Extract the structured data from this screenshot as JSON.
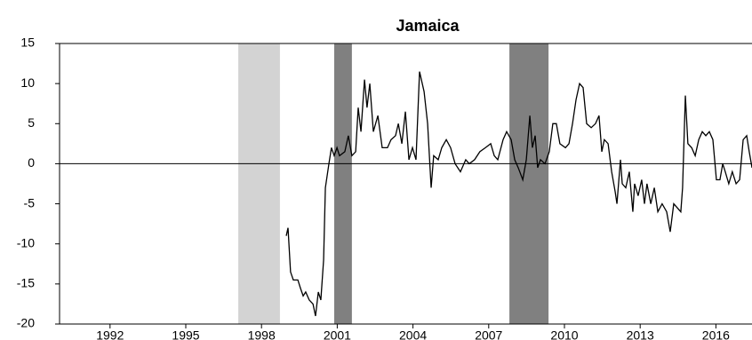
{
  "chart_data": {
    "type": "line",
    "title": "Jamaica",
    "xlim": [
      1990,
      2017.43
    ],
    "xticks": [
      1992,
      1995,
      1998,
      2001,
      2004,
      2007,
      2010,
      2013,
      2016
    ],
    "ylim": [
      -20,
      15
    ],
    "yticks": [
      -20,
      -15,
      -10,
      -5,
      0,
      5,
      10,
      15
    ],
    "color": "#000000",
    "shaded": [
      {
        "start": 1997.08,
        "end": 1998.73,
        "color": "#d3d3d3"
      },
      {
        "start": 2000.88,
        "end": 2001.58,
        "color": "#808080"
      },
      {
        "start": 2007.82,
        "end": 2009.37,
        "color": "#808080"
      }
    ],
    "x": [
      1998.98,
      1999.05,
      1999.15,
      1999.26,
      1999.44,
      1999.54,
      1999.65,
      1999.75,
      1999.89,
      2000.04,
      2000.14,
      2000.25,
      2000.35,
      2000.46,
      2000.53,
      2000.67,
      2000.77,
      2000.88,
      2000.99,
      2001.09,
      2001.3,
      2001.44,
      2001.58,
      2001.73,
      2001.83,
      2001.94,
      2002.08,
      2002.18,
      2002.29,
      2002.43,
      2002.61,
      2002.78,
      2002.99,
      2003.13,
      2003.31,
      2003.42,
      2003.56,
      2003.7,
      2003.84,
      2003.98,
      2004.12,
      2004.26,
      2004.44,
      2004.58,
      2004.72,
      2004.82,
      2005.0,
      2005.14,
      2005.32,
      2005.49,
      2005.67,
      2005.88,
      2006.09,
      2006.23,
      2006.44,
      2006.65,
      2006.87,
      2007.08,
      2007.22,
      2007.36,
      2007.57,
      2007.71,
      2007.89,
      2008.03,
      2008.17,
      2008.35,
      2008.49,
      2008.63,
      2008.73,
      2008.84,
      2008.94,
      2009.05,
      2009.23,
      2009.4,
      2009.54,
      2009.68,
      2009.82,
      2010.04,
      2010.18,
      2010.32,
      2010.46,
      2010.6,
      2010.74,
      2010.88,
      2011.06,
      2011.23,
      2011.37,
      2011.48,
      2011.58,
      2011.73,
      2011.87,
      2012.01,
      2012.08,
      2012.22,
      2012.29,
      2012.43,
      2012.57,
      2012.71,
      2012.78,
      2012.92,
      2013.06,
      2013.17,
      2013.27,
      2013.42,
      2013.56,
      2013.7,
      2013.87,
      2014.05,
      2014.19,
      2014.33,
      2014.47,
      2014.61,
      2014.68,
      2014.79,
      2014.89,
      2015.04,
      2015.18,
      2015.32,
      2015.46,
      2015.6,
      2015.74,
      2015.88,
      2016.02,
      2016.16,
      2016.27,
      2016.37,
      2016.51,
      2016.65,
      2016.8,
      2016.94,
      2017.08,
      2017.22,
      2017.32,
      2017.43
    ],
    "values": [
      -9,
      -8,
      -13.5,
      -14.5,
      -14.5,
      -15.5,
      -16.5,
      -16,
      -17,
      -17.5,
      -19,
      -16,
      -17,
      -12,
      -3,
      0,
      2,
      1,
      2,
      1,
      1.5,
      3.5,
      1,
      1.5,
      7,
      4,
      10.5,
      7,
      10,
      4,
      6,
      2,
      2,
      3,
      3.5,
      5,
      2.5,
      6.5,
      0.5,
      2,
      0.5,
      11.5,
      9,
      5,
      -3,
      1,
      0.5,
      2,
      3,
      2,
      0,
      -1,
      0.5,
      0,
      0.5,
      1.5,
      2,
      2.5,
      1,
      0.5,
      3,
      4,
      3,
      0.5,
      -0.5,
      -2,
      0.5,
      6,
      2,
      3.5,
      -0.5,
      0.5,
      0,
      1.5,
      5,
      5,
      2.5,
      2,
      2.5,
      5,
      8,
      10,
      9.5,
      5,
      4.5,
      5,
      6,
      1.5,
      3,
      2.5,
      -1,
      -3.5,
      -5,
      0.5,
      -2.5,
      -3,
      -1,
      -6,
      -2.5,
      -4,
      -2,
      -5,
      -2.5,
      -5,
      -3,
      -6,
      -5,
      -6,
      -8.5,
      -5,
      -5.5,
      -6,
      -3,
      8.5,
      2.5,
      2,
      1,
      3,
      4,
      3.5,
      4,
      3,
      -2,
      -2,
      0,
      -1,
      -2.5,
      -1,
      -2.5,
      -2,
      3,
      3.5,
      1.5,
      -0.5
    ]
  }
}
